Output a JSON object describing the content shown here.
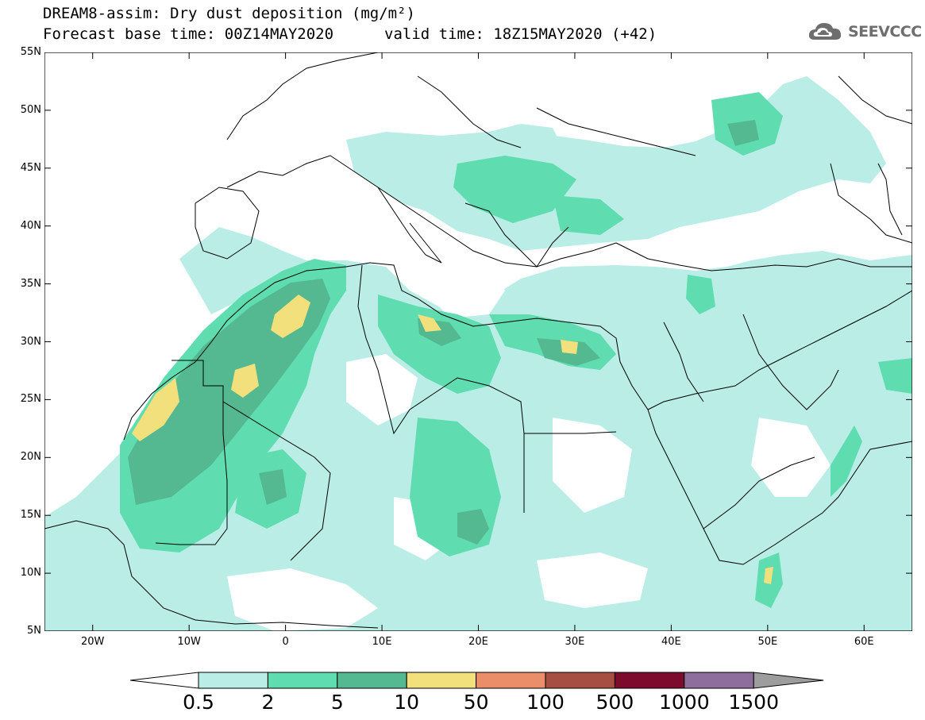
{
  "header": {
    "title_line1": "DREAM8-assim: Dry dust deposition (mg/m²)",
    "title_line2": "Forecast base time: 00Z14MAY2020",
    "valid_time": "valid time: 18Z15MAY2020 (+42)",
    "logo_text": "SEEVCCC",
    "logo_icon": "cloud-icon"
  },
  "map": {
    "projection": "lat-lon",
    "lon_range": [
      -25,
      65
    ],
    "lat_range": [
      5,
      55
    ],
    "lat_labels": [
      "55N",
      "50N",
      "45N",
      "40N",
      "35N",
      "30N",
      "25N",
      "20N",
      "15N",
      "10N",
      "5N"
    ],
    "lon_labels": [
      "20W",
      "10W",
      "0",
      "10E",
      "20E",
      "30E",
      "40E",
      "50E",
      "60E"
    ]
  },
  "colorbar": {
    "labels": [
      "0.5",
      "2",
      "5",
      "10",
      "50",
      "100",
      "500",
      "1000",
      "1500"
    ],
    "colors": [
      "#b9ede6",
      "#5fdcb0",
      "#54b891",
      "#f1e07c",
      "#e98e69",
      "#a74e42",
      "#7c0b2e",
      "#8e6e9c"
    ],
    "under_color": "#ffffff",
    "over_color": "#9d9d9d"
  }
}
